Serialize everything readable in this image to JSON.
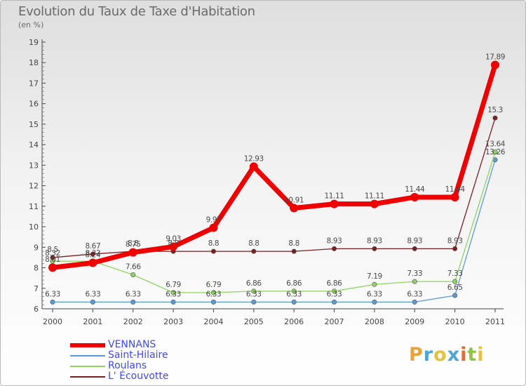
{
  "title": "Evolution du Taux de Taxe d'Habitation",
  "unit": "(en %)",
  "logo": {
    "text": "Proxiti",
    "colors": [
      "#e8a33a",
      "#4ea6d6",
      "#e4c23d",
      "#4ea6d6",
      "#e46a2f",
      "#8cc63e",
      "#e4c23d"
    ]
  },
  "chart_data": {
    "type": "line",
    "x": [
      "2000",
      "2001",
      "2002",
      "2003",
      "2004",
      "2005",
      "2006",
      "2007",
      "2008",
      "2009",
      "2010",
      "2011"
    ],
    "ylim": [
      6,
      19
    ],
    "yticks": [
      "6",
      "7",
      "8",
      "9",
      "10",
      "11",
      "12",
      "13",
      "14",
      "15",
      "16",
      "17",
      "18",
      "19"
    ],
    "grid": false,
    "legend_position": "bottom-left",
    "series": [
      {
        "name": "VENNANS",
        "color": "#ee0000",
        "values": [
          8.01,
          8.24,
          8.75,
          9.03,
          9.95,
          12.93,
          10.91,
          11.11,
          11.11,
          11.44,
          11.44,
          17.89
        ],
        "labels": [
          "8.01",
          "8.24",
          "8.75",
          "9.03",
          "9.95",
          "12.93",
          "10.91",
          "11.11",
          "11.11",
          "11.44",
          "11.44",
          "17.89"
        ]
      },
      {
        "name": "Saint-Hilaire",
        "color": "#5b9bd5",
        "values": [
          6.33,
          6.33,
          6.33,
          6.33,
          6.33,
          6.33,
          6.33,
          6.33,
          6.33,
          6.33,
          6.65,
          13.26
        ],
        "labels": [
          "6.33",
          "6.33",
          "6.33",
          "6.33",
          "6.33",
          "6.33",
          "6.33",
          "6.33",
          "6.33",
          "6.33",
          "6.65",
          "13.26"
        ]
      },
      {
        "name": "Roulans",
        "color": "#8ed45f",
        "values": [
          8.32,
          8.32,
          7.66,
          6.79,
          6.79,
          6.86,
          6.86,
          6.86,
          7.19,
          7.33,
          7.33,
          13.64
        ],
        "labels": [
          "8.32",
          "8.32",
          "7.66",
          "6.79",
          "6.79",
          "6.86",
          "6.86",
          "6.86",
          "7.19",
          "7.33",
          "7.33",
          "13.64"
        ]
      },
      {
        "name": "L' Écouvotte",
        "color": "#7a1f1f",
        "values": [
          8.5,
          8.67,
          8.8,
          8.8,
          8.8,
          8.8,
          8.8,
          8.93,
          8.93,
          8.93,
          8.93,
          15.3
        ],
        "labels": [
          "8.5",
          "8.67",
          "8.8",
          "8.8",
          "8.8",
          "8.8",
          "8.8",
          "8.93",
          "8.93",
          "8.93",
          "8.93",
          "15.3"
        ]
      }
    ]
  }
}
